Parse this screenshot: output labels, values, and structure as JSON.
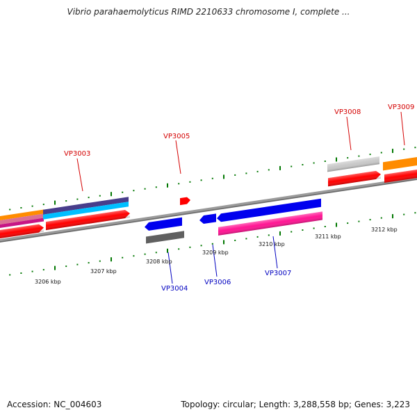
{
  "title": "Vibrio parahaemolyticus RIMD 2210633 chromosome I, complete ...",
  "footer": {
    "accession": "Accession: NC_004603",
    "summary": "Topology: circular; Length: 3,288,558 bp; Genes: 3,223"
  },
  "axis": {
    "tick_labels": [
      "3206 kbp",
      "3207 kbp",
      "3208 kbp",
      "3209 kbp",
      "3210 kbp",
      "3211 kbp",
      "3212 kbp"
    ]
  },
  "genes": {
    "forward_labels": [
      "VP3003",
      "VP3005",
      "VP3008",
      "VP3009"
    ],
    "reverse_labels": [
      "VP3004",
      "VP3006",
      "VP3007"
    ]
  },
  "colors": {
    "backbone": "#808080",
    "tick": "#007700",
    "forward_label": "#d40000",
    "reverse_label": "#0000c0",
    "red_gene": "#ff0000",
    "blue_gene": "#0000ff",
    "magenta_gene": "#ff1493",
    "cyan_gene": "#00bfff",
    "indigo_gene": "#483d8b",
    "orange_gene": "#ff8c00",
    "gray_gene": "#c0c0c0",
    "dark_gray_gene": "#606060"
  }
}
